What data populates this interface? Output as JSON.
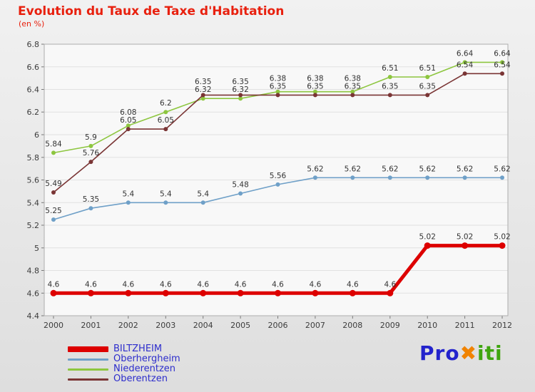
{
  "chart_data": {
    "type": "line",
    "title": "Evolution du Taux de Taxe d'Habitation",
    "subtitle": "(en %)",
    "xlabel": "",
    "ylabel": "",
    "x_labels": [
      "2000",
      "2001",
      "2002",
      "2003",
      "2004",
      "2005",
      "2006",
      "2007",
      "2008",
      "2009",
      "2010",
      "2011",
      "2012"
    ],
    "ylim": [
      4.4,
      6.8
    ],
    "yticks": [
      4.4,
      4.6,
      4.8,
      5,
      5.2,
      5.4,
      5.6,
      5.8,
      6,
      6.2,
      6.4,
      6.6,
      6.8
    ],
    "grid": "horizontal",
    "legend_position": "bottom-left",
    "series": [
      {
        "name": "BILTZHEIM",
        "color": "#dd0000",
        "line_width": 5,
        "marker_radius": 4.5,
        "draw_order": 4,
        "values": [
          4.6,
          4.6,
          4.6,
          4.6,
          4.6,
          4.6,
          4.6,
          4.6,
          4.6,
          4.6,
          5.02,
          5.02,
          5.02
        ]
      },
      {
        "name": "Oberhergheim",
        "color": "#6fa0c8",
        "line_width": 1.6,
        "marker_radius": 3,
        "draw_order": 3,
        "values": [
          5.25,
          5.35,
          5.4,
          5.4,
          5.4,
          5.48,
          5.56,
          5.62,
          5.62,
          5.62,
          5.62,
          5.62,
          5.62
        ]
      },
      {
        "name": "Niederentzen",
        "color": "#8dc63f",
        "line_width": 1.6,
        "marker_radius": 3,
        "draw_order": 1,
        "values": [
          5.84,
          5.9,
          6.08,
          6.2,
          6.32,
          6.32,
          6.38,
          6.38,
          6.38,
          6.51,
          6.51,
          6.64,
          6.64
        ]
      },
      {
        "name": "Oberentzen",
        "color": "#7a3535",
        "line_width": 1.6,
        "marker_radius": 3,
        "draw_order": 2,
        "values": [
          5.49,
          5.76,
          6.05,
          6.05,
          6.35,
          6.35,
          6.35,
          6.35,
          6.35,
          6.35,
          6.35,
          6.54,
          6.54
        ]
      }
    ]
  },
  "logo": {
    "pro": "Pro",
    "x": "✖",
    "iti": "iti"
  },
  "colors": {
    "title": "#e8200e",
    "legend_text": "#2d2dcc",
    "tick_text": "#3c3c3c",
    "point_label_text": "#333333",
    "logo_blue": "#2323cc",
    "logo_orange": "#f08300",
    "logo_green": "#3fa50f"
  }
}
